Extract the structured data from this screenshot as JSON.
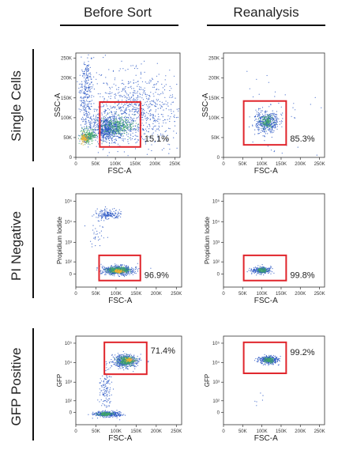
{
  "columns": [
    "Before Sort",
    "Reanalysis"
  ],
  "rows": [
    "Single Cells",
    "PI Negative",
    "GFP Positive"
  ],
  "chart_data": [
    {
      "type": "scatter",
      "row": "Single Cells",
      "column": "Before Sort",
      "xlabel": "FSC-A",
      "ylabel": "SSC-A",
      "xlim": [
        0,
        262144
      ],
      "ylim": [
        0,
        262144
      ],
      "xticks": [
        "0",
        "50K",
        "100K",
        "150K",
        "200K",
        "250K"
      ],
      "yticks": [
        "0",
        "50K",
        "100K",
        "150K",
        "200K",
        "250K"
      ],
      "gate": {
        "x": [
          60000,
          160000
        ],
        "y": [
          10000,
          130000
        ],
        "label": "15.1%"
      },
      "density": "high"
    },
    {
      "type": "scatter",
      "row": "Single Cells",
      "column": "Reanalysis",
      "xlabel": "FSC-A",
      "ylabel": "SSC-A",
      "xlim": [
        0,
        262144
      ],
      "ylim": [
        0,
        262144
      ],
      "xticks": [
        "0",
        "50K",
        "100K",
        "150K",
        "200K",
        "250K"
      ],
      "yticks": [
        "0",
        "50K",
        "100K",
        "150K",
        "200K",
        "250K"
      ],
      "gate": {
        "x": [
          60000,
          160000
        ],
        "y": [
          10000,
          130000
        ],
        "label": "85.3%"
      },
      "density": "medium"
    },
    {
      "type": "scatter",
      "row": "PI Negative",
      "column": "Before Sort",
      "xlabel": "FSC-A",
      "ylabel": "Propidium Iodide",
      "xlim": [
        0,
        262144
      ],
      "ylim": [
        "-10^2",
        "10^5"
      ],
      "xticks": [
        "0",
        "50K",
        "100K",
        "150K",
        "200K",
        "250K"
      ],
      "yticks": [
        "0",
        "10²",
        "10³",
        "10⁴",
        "10⁵"
      ],
      "gate": {
        "x": [
          60000,
          160000
        ],
        "y": [
          "-10^2",
          "10^2.4"
        ],
        "label": "96.9%"
      },
      "density": "high"
    },
    {
      "type": "scatter",
      "row": "PI Negative",
      "column": "Reanalysis",
      "xlabel": "FSC-A",
      "ylabel": "Propidium Iodide",
      "xlim": [
        0,
        262144
      ],
      "ylim": [
        "-10^2",
        "10^5"
      ],
      "xticks": [
        "0",
        "50K",
        "100K",
        "150K",
        "200K",
        "250K"
      ],
      "yticks": [
        "0",
        "10²",
        "10³",
        "10⁴",
        "10⁵"
      ],
      "gate": {
        "x": [
          60000,
          160000
        ],
        "y": [
          "-10^2",
          "10^2.4"
        ],
        "label": "99.8%"
      },
      "density": "medium"
    },
    {
      "type": "scatter",
      "row": "GFP Positive",
      "column": "Before Sort",
      "xlabel": "FSC-A",
      "ylabel": "GFP",
      "xlim": [
        0,
        262144
      ],
      "ylim": [
        "-10^2",
        "10^5"
      ],
      "xticks": [
        "0",
        "50K",
        "100K",
        "150K",
        "200K",
        "250K"
      ],
      "yticks": [
        "0",
        "10²",
        "10³",
        "10⁴",
        "10⁵"
      ],
      "gate": {
        "x": [
          60000,
          160000
        ],
        "y": [
          "10^3.5",
          "10^4.6"
        ],
        "label": "71.4%"
      },
      "density": "high"
    },
    {
      "type": "scatter",
      "row": "GFP Positive",
      "column": "Reanalysis",
      "xlabel": "FSC-A",
      "ylabel": "GFP",
      "xlim": [
        0,
        262144
      ],
      "ylim": [
        "-10^2",
        "10^5"
      ],
      "xticks": [
        "0",
        "50K",
        "100K",
        "150K",
        "200K",
        "250K"
      ],
      "yticks": [
        "0",
        "10²",
        "10³",
        "10⁴",
        "10⁵"
      ],
      "gate": {
        "x": [
          60000,
          160000
        ],
        "y": [
          "10^3.5",
          "10^4.6"
        ],
        "label": "99.2%"
      },
      "density": "medium"
    }
  ],
  "colors": {
    "gate": "#e0242b",
    "dots": "#2a57c4",
    "dense": "#3fa66a",
    "core": "#f2b233",
    "axis": "#333333"
  }
}
